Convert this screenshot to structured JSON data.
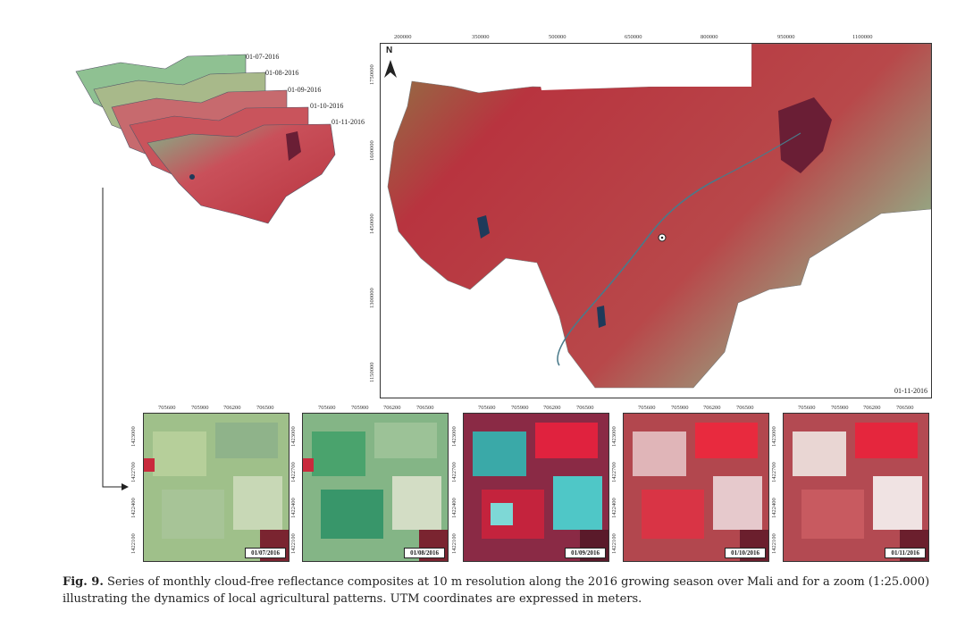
{
  "stack": {
    "dates": [
      "01-07-2016",
      "01-08-2016",
      "01-09-2016",
      "01-10-2016",
      "01-11-2016"
    ]
  },
  "main_map": {
    "top_ticks": [
      "200000",
      "350000",
      "500000",
      "650000",
      "800000",
      "950000",
      "1100000"
    ],
    "left_ticks": [
      "1750000",
      "1600000",
      "1450000",
      "1300000",
      "1150000"
    ],
    "north_label": "N",
    "date_label": "01-11-2016"
  },
  "zooms": {
    "top_ticks": [
      "705600",
      "705900",
      "706200",
      "706500"
    ],
    "left_ticks": [
      "1423000",
      "1422700",
      "1422400",
      "1422100"
    ],
    "dates": [
      "01/07/2016",
      "01/08/2016",
      "01/09/2016",
      "01/10/2016",
      "01/11/2016"
    ]
  },
  "caption": {
    "label": "Fig. 9.",
    "text": " Series of monthly cloud-free reflectance composites at 10 m resolution along the 2016 growing season over Mali and for a zoom (1:25.000) illustrating the dynamics of local agricultural patterns. UTM coordinates are expressed in meters."
  },
  "colors": {
    "vegetation_red": "#b8343f",
    "dry_green": "#8fb68c",
    "water_blue": "#1f3a5a"
  }
}
